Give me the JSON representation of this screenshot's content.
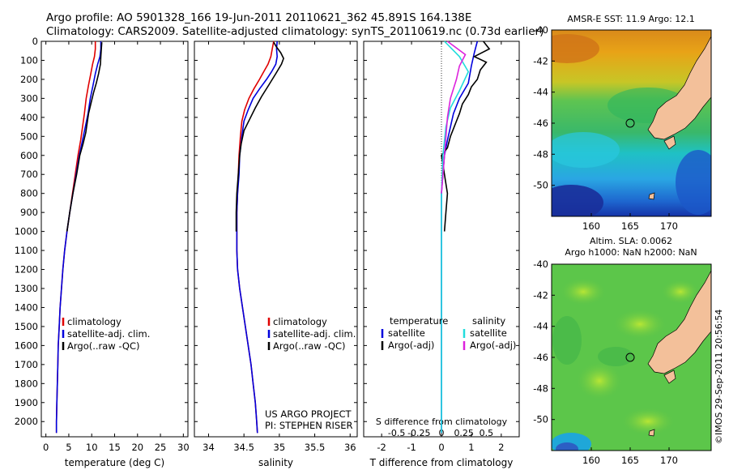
{
  "header": {
    "line1": "Argo profile: AO 5901328_166 19-Jun-2011 20110621_362 45.891S 164.138E",
    "line2": "Climatology: CARS2009. Satellite-adjusted climatology: synTS_20110619.nc (0.73d earlier)"
  },
  "colors": {
    "climatology": "#e00000",
    "satellite": "#0000dd",
    "argo": "#000000",
    "sal_satellite": "#22dddd",
    "sal_argo": "#dd22dd"
  },
  "chart_data": [
    {
      "type": "line",
      "panel": "temperature",
      "xlabel": "temperature (deg C)",
      "xlim": [
        -1,
        31
      ],
      "xticks": [
        0,
        5,
        10,
        15,
        20,
        25,
        30
      ],
      "ylim": [
        0,
        2080
      ],
      "yticks": [
        0,
        100,
        200,
        300,
        400,
        500,
        600,
        700,
        800,
        900,
        1000,
        1100,
        1200,
        1300,
        1400,
        1500,
        1600,
        1700,
        1800,
        1900,
        2000
      ],
      "legend": [
        "climatology",
        "satellite-adj. clim.",
        "Argo(..raw -QC)"
      ],
      "series": [
        {
          "name": "climatology",
          "color_key": "climatology",
          "points": [
            [
              10.8,
              0
            ],
            [
              10.8,
              40
            ],
            [
              10.6,
              80
            ],
            [
              10.2,
              120
            ],
            [
              9.8,
              170
            ],
            [
              9.3,
              230
            ],
            [
              8.8,
              300
            ],
            [
              8.4,
              380
            ],
            [
              8.0,
              450
            ],
            [
              7.6,
              520
            ],
            [
              7.0,
              600
            ],
            [
              6.4,
              700
            ],
            [
              5.8,
              800
            ],
            [
              5.2,
              900
            ],
            [
              4.6,
              1000
            ],
            [
              4.1,
              1100
            ],
            [
              3.7,
              1200
            ],
            [
              3.4,
              1300
            ],
            [
              3.1,
              1400
            ],
            [
              2.9,
              1500
            ],
            [
              2.7,
              1600
            ],
            [
              2.6,
              1700
            ],
            [
              2.5,
              1800
            ],
            [
              2.4,
              1900
            ],
            [
              2.3,
              2000
            ],
            [
              2.3,
              2060
            ]
          ]
        },
        {
          "name": "satellite-adj. clim.",
          "color_key": "satellite",
          "points": [
            [
              12.0,
              0
            ],
            [
              12.0,
              40
            ],
            [
              11.8,
              80
            ],
            [
              11.3,
              120
            ],
            [
              10.8,
              170
            ],
            [
              10.3,
              230
            ],
            [
              9.7,
              300
            ],
            [
              9.2,
              380
            ],
            [
              8.6,
              450
            ],
            [
              8.0,
              520
            ],
            [
              7.3,
              600
            ],
            [
              6.6,
              700
            ],
            [
              5.9,
              800
            ],
            [
              5.2,
              900
            ],
            [
              4.6,
              1000
            ],
            [
              4.1,
              1100
            ],
            [
              3.7,
              1200
            ],
            [
              3.4,
              1300
            ],
            [
              3.1,
              1400
            ],
            [
              2.9,
              1500
            ],
            [
              2.7,
              1600
            ],
            [
              2.6,
              1700
            ],
            [
              2.5,
              1800
            ],
            [
              2.4,
              1900
            ],
            [
              2.3,
              2000
            ],
            [
              2.3,
              2060
            ]
          ]
        },
        {
          "name": "Argo(..raw -QC)",
          "color_key": "argo",
          "points": [
            [
              12.2,
              5
            ],
            [
              12.1,
              40
            ],
            [
              12.0,
              80
            ],
            [
              11.9,
              120
            ],
            [
              11.5,
              170
            ],
            [
              11.0,
              220
            ],
            [
              10.4,
              270
            ],
            [
              9.8,
              330
            ],
            [
              9.3,
              380
            ],
            [
              9.0,
              430
            ],
            [
              8.7,
              480
            ],
            [
              8.1,
              540
            ],
            [
              7.4,
              600
            ],
            [
              6.7,
              700
            ],
            [
              5.9,
              800
            ],
            [
              5.2,
              900
            ],
            [
              4.6,
              1000
            ]
          ]
        }
      ]
    },
    {
      "type": "line",
      "panel": "salinity",
      "xlabel": "salinity",
      "xlim": [
        33.8,
        36.1
      ],
      "xticks": [
        34,
        34.5,
        35,
        35.5,
        36
      ],
      "ylim": [
        0,
        2080
      ],
      "legend": [
        "climatology",
        "satellite-adj. clim.",
        "Argo(..raw -QC)"
      ],
      "annotation": [
        "US ARGO PROJECT",
        "PI: STEPHEN RISER"
      ],
      "series": [
        {
          "name": "climatology",
          "color_key": "climatology",
          "points": [
            [
              34.92,
              0
            ],
            [
              34.9,
              40
            ],
            [
              34.88,
              80
            ],
            [
              34.84,
              120
            ],
            [
              34.78,
              160
            ],
            [
              34.72,
              200
            ],
            [
              34.64,
              250
            ],
            [
              34.57,
              300
            ],
            [
              34.51,
              360
            ],
            [
              34.47,
              420
            ],
            [
              34.45,
              500
            ],
            [
              34.43,
              600
            ],
            [
              34.42,
              700
            ],
            [
              34.41,
              800
            ],
            [
              34.4,
              900
            ],
            [
              34.4,
              1000
            ],
            [
              34.4,
              1100
            ],
            [
              34.41,
              1200
            ],
            [
              34.44,
              1300
            ],
            [
              34.48,
              1400
            ],
            [
              34.52,
              1500
            ],
            [
              34.56,
              1600
            ],
            [
              34.6,
              1700
            ],
            [
              34.63,
              1800
            ],
            [
              34.66,
              1900
            ],
            [
              34.68,
              2000
            ],
            [
              34.69,
              2060
            ]
          ]
        },
        {
          "name": "satellite-adj. clim.",
          "color_key": "satellite",
          "points": [
            [
              34.97,
              0
            ],
            [
              34.96,
              40
            ],
            [
              34.97,
              80
            ],
            [
              34.95,
              120
            ],
            [
              34.89,
              160
            ],
            [
              34.82,
              200
            ],
            [
              34.72,
              250
            ],
            [
              34.63,
              300
            ],
            [
              34.56,
              360
            ],
            [
              34.5,
              420
            ],
            [
              34.47,
              500
            ],
            [
              34.44,
              600
            ],
            [
              34.43,
              700
            ],
            [
              34.41,
              800
            ],
            [
              34.4,
              900
            ],
            [
              34.4,
              1000
            ],
            [
              34.4,
              1100
            ],
            [
              34.41,
              1200
            ],
            [
              34.44,
              1300
            ],
            [
              34.48,
              1400
            ],
            [
              34.52,
              1500
            ],
            [
              34.56,
              1600
            ],
            [
              34.6,
              1700
            ],
            [
              34.63,
              1800
            ],
            [
              34.66,
              1900
            ],
            [
              34.68,
              2000
            ],
            [
              34.69,
              2060
            ]
          ]
        },
        {
          "name": "Argo(..raw -QC)",
          "color_key": "argo",
          "points": [
            [
              34.92,
              5
            ],
            [
              34.96,
              30
            ],
            [
              35.02,
              60
            ],
            [
              35.06,
              90
            ],
            [
              35.03,
              120
            ],
            [
              34.95,
              170
            ],
            [
              34.85,
              230
            ],
            [
              34.75,
              290
            ],
            [
              34.66,
              350
            ],
            [
              34.58,
              410
            ],
            [
              34.5,
              470
            ],
            [
              34.46,
              540
            ],
            [
              34.44,
              600
            ],
            [
              34.42,
              700
            ],
            [
              34.4,
              800
            ],
            [
              34.39,
              900
            ],
            [
              34.39,
              1000
            ]
          ]
        }
      ]
    },
    {
      "type": "line",
      "panel": "difference",
      "xlabel": "T difference from climatology",
      "xlim": [
        -2.6,
        2.6
      ],
      "xticks": [
        -2,
        -1,
        0,
        1,
        2
      ],
      "top_axis_label": "S difference from climatology",
      "top_xticks": [
        "-0.5",
        "-0.25",
        "0",
        "0.25",
        "0.5"
      ],
      "ylim": [
        0,
        2080
      ],
      "legend": {
        "temperature": "temperature",
        "salinity": "salinity",
        "satellite": "satellite",
        "argo": "Argo(-adj)"
      },
      "series": [
        {
          "name": "satellite",
          "color_key": "satellite",
          "points": [
            [
              1.2,
              0
            ],
            [
              1.1,
              60
            ],
            [
              1.0,
              130
            ],
            [
              0.9,
              220
            ],
            [
              0.6,
              300
            ],
            [
              0.4,
              380
            ],
            [
              0.3,
              450
            ],
            [
              0.2,
              520
            ],
            [
              0.1,
              600
            ],
            [
              0.05,
              700
            ],
            [
              0.0,
              800
            ],
            [
              0.0,
              2060
            ]
          ]
        },
        {
          "name": "Argo(-adj)",
          "color_key": "argo",
          "points": [
            [
              1.4,
              0
            ],
            [
              1.6,
              40
            ],
            [
              1.1,
              80
            ],
            [
              1.5,
              110
            ],
            [
              1.3,
              150
            ],
            [
              1.2,
              200
            ],
            [
              1.0,
              240
            ],
            [
              0.9,
              280
            ],
            [
              0.7,
              330
            ],
            [
              0.6,
              380
            ],
            [
              0.5,
              420
            ],
            [
              0.4,
              460
            ],
            [
              0.3,
              500
            ],
            [
              0.2,
              560
            ],
            [
              0.0,
              600
            ],
            [
              0.1,
              700
            ],
            [
              0.2,
              800
            ],
            [
              0.15,
              900
            ],
            [
              0.1,
              1000
            ]
          ]
        },
        {
          "name": "satellite",
          "color_key": "sal_satellite",
          "points": [
            [
              0.1,
              0
            ],
            [
              0.6,
              80
            ],
            [
              0.9,
              160
            ],
            [
              0.6,
              260
            ],
            [
              0.3,
              350
            ],
            [
              0.15,
              450
            ],
            [
              0.05,
              600
            ],
            [
              0.0,
              800
            ],
            [
              0.0,
              2060
            ]
          ]
        },
        {
          "name": "Argo(-adj)",
          "color_key": "sal_argo",
          "points": [
            [
              0.2,
              0
            ],
            [
              0.8,
              70
            ],
            [
              0.6,
              130
            ],
            [
              0.5,
              200
            ],
            [
              0.3,
              300
            ],
            [
              0.2,
              400
            ],
            [
              0.1,
              600
            ],
            [
              0.0,
              800
            ]
          ]
        }
      ]
    }
  ],
  "maps": {
    "sst": {
      "title": "AMSR-E SST: 11.9 Argo: 12.1",
      "yticks": [
        "-40",
        "-42",
        "-44",
        "-46",
        "-48",
        "-50"
      ],
      "xticks": [
        "160",
        "165",
        "170"
      ]
    },
    "sla": {
      "title1": "Altim. SLA: 0.0062",
      "title2": "Argo h1000: NaN h2000: NaN",
      "yticks": [
        "-40",
        "-42",
        "-44",
        "-46",
        "-48",
        "-50"
      ],
      "xticks": [
        "160",
        "165",
        "170"
      ]
    }
  },
  "credit": "©IMOS 29-Sep-2011 20:56:54"
}
